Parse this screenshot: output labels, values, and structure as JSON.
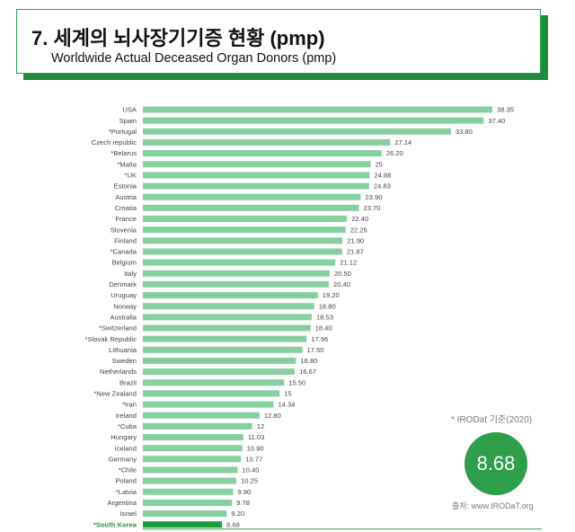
{
  "header": {
    "title": "7. 세계의 뇌사장기기증 현황 (pmp)",
    "subtitle": "Worldwide Actual Deceased Organ Donors (pmp)"
  },
  "colors": {
    "bar": "#86cfa0",
    "highlight_bar": "#1e9a3f",
    "accent": "#2e9e49"
  },
  "chart_data": {
    "type": "bar",
    "orientation": "horizontal",
    "categories": [
      "USA",
      "Spain",
      "*Portugal",
      "Czech republic",
      "*Belarus",
      "*Malta",
      "*UK",
      "Estonia",
      "Austria",
      "Croatia",
      "France",
      "Slovenia",
      "Finland",
      "*Canada",
      "Belgium",
      "Italy",
      "Denmark",
      "Uruguay",
      "Norway",
      "Australia",
      "*Switzerland",
      "*Slovak Republic",
      "Lithuania",
      "Sweden",
      "Netherlands",
      "Brazil",
      "*New Zealand",
      "*Iran",
      "Ireland",
      "*Cuba",
      "Hungary",
      "Iceland",
      "Germany",
      "*Chile",
      "Poland",
      "*Latvia",
      "Argentina",
      "Israel",
      "*South Korea"
    ],
    "values": [
      38.35,
      37.4,
      33.8,
      27.14,
      26.2,
      25,
      24.88,
      24.83,
      23.9,
      23.7,
      22.4,
      22.25,
      21.9,
      21.87,
      21.12,
      20.5,
      20.4,
      19.2,
      18.8,
      18.53,
      18.4,
      17.96,
      17.5,
      16.8,
      16.67,
      15.5,
      15,
      14.34,
      12.8,
      12,
      11.03,
      10.9,
      10.77,
      10.4,
      10.25,
      9.9,
      9.78,
      9.2,
      8.68
    ],
    "value_labels": [
      "38.35",
      "37.40",
      "33.80",
      "27.14",
      "26.20",
      "25",
      "24.88",
      "24.83",
      "23.90",
      "23.70",
      "22.40",
      "22.25",
      "21.90",
      "21.87",
      "21.12",
      "20.50",
      "20.40",
      "19.20",
      "18.80",
      "18.53",
      "18.40",
      "17.96",
      "17.50",
      "16.80",
      "16.67",
      "15.50",
      "15",
      "14.34",
      "12.80",
      "12",
      "11.03",
      "10.90",
      "10.77",
      "10.40",
      "10.25",
      "9.90",
      "9.78",
      "9.20",
      "8.68"
    ],
    "highlight": "*South Korea",
    "title": "Worldwide Actual Deceased Organ Donors (pmp)",
    "xlim": [
      0,
      40
    ],
    "grid": false,
    "legend": "none"
  },
  "notes": {
    "source_note": "* IRODat 기준(2020)",
    "korea_value": "8.68",
    "source_url": "출처: www.IRODaT.org"
  }
}
